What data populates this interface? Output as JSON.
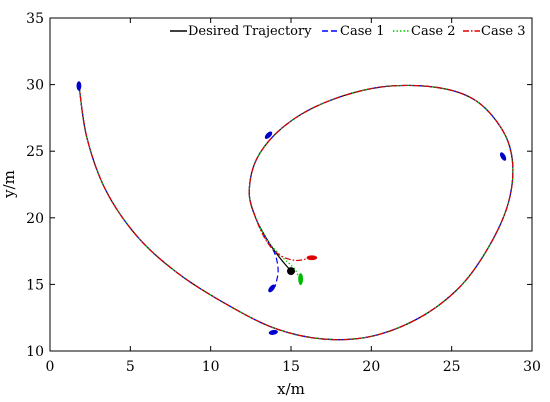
{
  "chart_data": {
    "type": "line",
    "xlabel": "x/m",
    "ylabel": "y/m",
    "xlim": [
      0,
      30
    ],
    "ylim": [
      10,
      35
    ],
    "xticks": [
      0,
      5,
      10,
      15,
      20,
      25,
      30
    ],
    "yticks": [
      10,
      15,
      20,
      25,
      30,
      35
    ],
    "grid": false,
    "legend_position": "top",
    "series": [
      {
        "name": "Desired Trajectory",
        "color": "#000000",
        "dash": "solid",
        "x": [
          1.8,
          2.3,
          3.5,
          5.5,
          8.0,
          11.0,
          14.0,
          17.0,
          20.0,
          23.0,
          25.5,
          27.3,
          28.5,
          28.8,
          28.2,
          26.5,
          24.0,
          20.5,
          17.0,
          14.5,
          12.9,
          12.4,
          12.8,
          13.6,
          14.3,
          15.0
        ],
        "y": [
          30.0,
          26.0,
          22.0,
          18.5,
          15.8,
          13.5,
          11.7,
          10.9,
          11.1,
          12.5,
          14.8,
          17.8,
          21.0,
          24.0,
          26.5,
          28.8,
          29.8,
          29.8,
          28.6,
          26.8,
          24.5,
          22.0,
          20.0,
          18.2,
          17.0,
          16.0
        ]
      },
      {
        "name": "Case 1",
        "color": "#0000ff",
        "dash": "dashed",
        "x": [
          1.8,
          2.3,
          3.5,
          5.5,
          8.0,
          11.0,
          14.0,
          17.0,
          20.0,
          23.0,
          25.5,
          27.3,
          28.5,
          28.8,
          28.2,
          26.5,
          24.0,
          20.5,
          17.0,
          14.5,
          12.9,
          12.4,
          12.8,
          13.5,
          14.0,
          14.2,
          14.0
        ],
        "y": [
          30.0,
          26.0,
          22.0,
          18.5,
          15.8,
          13.5,
          11.7,
          10.9,
          11.1,
          12.5,
          14.8,
          17.8,
          21.0,
          24.0,
          26.5,
          28.8,
          29.8,
          29.8,
          28.6,
          26.8,
          24.5,
          22.0,
          20.0,
          18.3,
          17.3,
          16.0,
          14.8
        ]
      },
      {
        "name": "Case 2",
        "color": "#00cc00",
        "dash": "dotted",
        "x": [
          1.8,
          2.3,
          3.5,
          5.5,
          8.0,
          11.0,
          14.0,
          17.0,
          20.0,
          23.0,
          25.5,
          27.3,
          28.5,
          28.8,
          28.2,
          26.5,
          24.0,
          20.5,
          17.0,
          14.5,
          12.9,
          12.4,
          12.8,
          13.6,
          14.5,
          15.2,
          15.5
        ],
        "y": [
          30.0,
          26.0,
          22.0,
          18.5,
          15.8,
          13.5,
          11.7,
          10.9,
          11.1,
          12.5,
          14.8,
          17.8,
          21.0,
          24.0,
          26.5,
          28.8,
          29.8,
          29.8,
          28.6,
          26.8,
          24.5,
          22.0,
          20.0,
          18.2,
          17.0,
          16.2,
          15.5
        ]
      },
      {
        "name": "Case 3",
        "color": "#dd0000",
        "dash": "dashdot",
        "x": [
          1.8,
          2.3,
          3.5,
          5.5,
          8.0,
          11.0,
          14.0,
          17.0,
          20.0,
          23.0,
          25.5,
          27.3,
          28.5,
          28.8,
          28.2,
          26.5,
          24.0,
          20.5,
          17.0,
          14.5,
          12.9,
          12.4,
          12.8,
          13.5,
          14.3,
          15.3,
          16.2
        ],
        "y": [
          30.0,
          26.0,
          22.0,
          18.5,
          15.8,
          13.5,
          11.7,
          10.9,
          11.1,
          12.5,
          14.8,
          17.8,
          21.0,
          24.0,
          26.5,
          28.8,
          29.8,
          29.8,
          28.6,
          26.8,
          24.5,
          22.0,
          20.0,
          18.2,
          17.2,
          16.8,
          17.0
        ]
      }
    ],
    "markers": [
      {
        "shape": "ellipse",
        "color": "#0000cc",
        "x": 1.8,
        "y": 29.9,
        "rx": 0.15,
        "ry": 0.35,
        "angle": 0
      },
      {
        "shape": "ellipse",
        "color": "#0000cc",
        "x": 13.6,
        "y": 26.2,
        "rx": 0.15,
        "ry": 0.35,
        "angle": 45
      },
      {
        "shape": "ellipse",
        "color": "#0000cc",
        "x": 28.2,
        "y": 24.6,
        "rx": 0.15,
        "ry": 0.35,
        "angle": -30
      },
      {
        "shape": "ellipse",
        "color": "#0000cc",
        "x": 13.9,
        "y": 11.4,
        "rx": 0.15,
        "ry": 0.35,
        "angle": 80
      },
      {
        "shape": "ellipse",
        "color": "#0000cc",
        "x": 13.8,
        "y": 14.7,
        "rx": 0.15,
        "ry": 0.35,
        "angle": 40
      },
      {
        "shape": "ellipse",
        "color": "#00bb00",
        "x": 15.6,
        "y": 15.4,
        "rx": 0.15,
        "ry": 0.45,
        "angle": 0
      },
      {
        "shape": "ellipse",
        "color": "#dd0000",
        "x": 16.3,
        "y": 17.0,
        "rx": 0.15,
        "ry": 0.4,
        "angle": 90
      },
      {
        "shape": "dot",
        "color": "#000000",
        "x": 15.0,
        "y": 16.0,
        "rx": 0.25,
        "ry": 0.3,
        "angle": 0
      }
    ]
  }
}
